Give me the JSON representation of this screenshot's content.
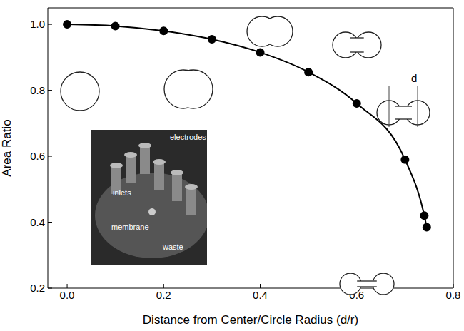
{
  "chart_data": {
    "type": "line",
    "x_label": "Distance from Center/Circle Radius (d/r)",
    "y_label": "Area Ratio",
    "x": [
      0.0,
      0.1,
      0.2,
      0.3,
      0.4,
      0.5,
      0.6,
      0.7,
      0.74,
      0.745
    ],
    "values": [
      1.0,
      0.995,
      0.98,
      0.955,
      0.915,
      0.855,
      0.76,
      0.59,
      0.42,
      0.385
    ],
    "color": "#000000",
    "marker": "circle",
    "line_style": "solid",
    "xlim": [
      -0.04,
      0.8
    ],
    "xticks": [
      {
        "value": 0,
        "label": "0.0"
      },
      {
        "value": 0.2,
        "label": "0.2"
      },
      {
        "value": 0.4,
        "label": "0.4"
      },
      {
        "value": 0.6,
        "label": "0.6"
      },
      {
        "value": 0.8,
        "label": "0.8"
      }
    ],
    "ylim": [
      0.2,
      1.05
    ],
    "yticks": [
      {
        "value": 0.2,
        "label": "0.2"
      },
      {
        "value": 0.4,
        "label": "0.4"
      },
      {
        "value": 0.6,
        "label": "0.6"
      },
      {
        "value": 0.8,
        "label": "0.8"
      },
      {
        "value": 1,
        "label": "1.0"
      }
    ],
    "grid": false,
    "annotations": [
      "d",
      "electrodes",
      "inlets",
      "membrane",
      "waste"
    ]
  }
}
